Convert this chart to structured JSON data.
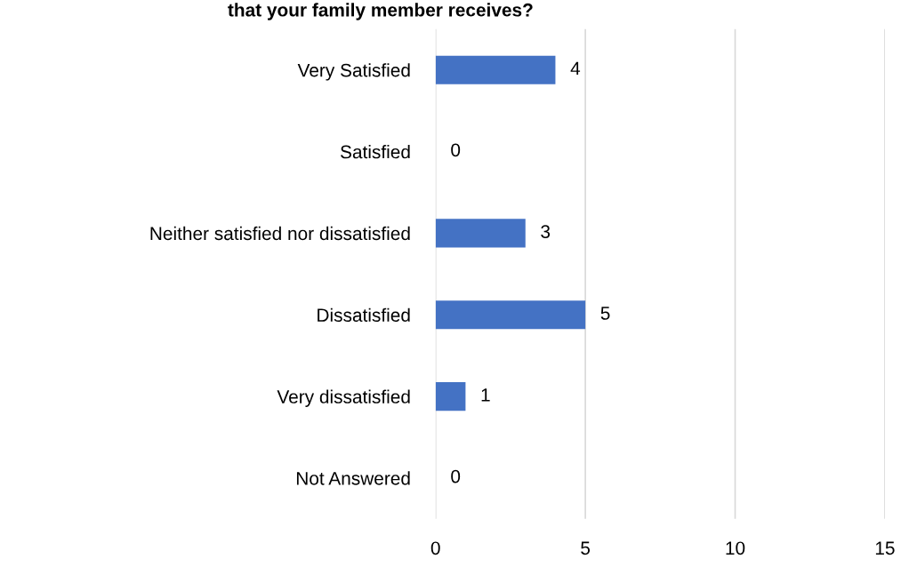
{
  "chart_data": {
    "type": "bar",
    "orientation": "horizontal",
    "title": "that your family member receives?",
    "categories": [
      "Very Satisfied",
      "Satisfied",
      "Neither satisfied nor dissatisfied",
      "Dissatisfied",
      "Very dissatisfied",
      "Not Answered"
    ],
    "values": [
      4,
      0,
      3,
      5,
      1,
      0
    ],
    "color": "#4472c4",
    "xlim": [
      0,
      15
    ],
    "xticks": [
      0,
      5,
      10,
      15
    ],
    "grid": "x",
    "data_labels": true
  }
}
